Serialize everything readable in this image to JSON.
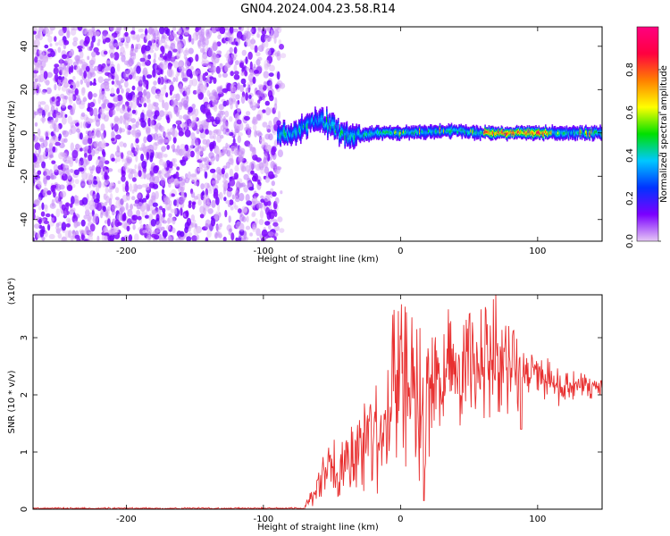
{
  "title": "GN04.2024.004.23.58.R14",
  "chart_data": [
    {
      "type": "heatmap",
      "xlabel": "Height of straight line (km)",
      "ylabel": "Frequency (Hz)",
      "xlim": [
        -268,
        147
      ],
      "ylim": [
        -50,
        49
      ],
      "xticks": [
        -200,
        -100,
        0,
        100
      ],
      "yticks": [
        -40,
        -20,
        0,
        20,
        40
      ],
      "colorbar": {
        "label": "Normalized spectral amplitude",
        "range": [
          0,
          1
        ],
        "ticks": [
          "0.0",
          "0.2",
          "0.4",
          "0.6",
          "0.8"
        ],
        "colormap": [
          "#e6c8f5",
          "#7b00ff",
          "#0033ff",
          "#00c8ff",
          "#00e000",
          "#ffff00",
          "#ff8000",
          "#ff0040",
          "#ff0080"
        ]
      },
      "features": {
        "noise_region_x": [
          -268,
          -90
        ],
        "noise_level": 0.15,
        "signal_band": [
          {
            "x": -90,
            "f": 0
          },
          {
            "x": -80,
            "f": -2
          },
          {
            "x": -70,
            "f": 4
          },
          {
            "x": -60,
            "f": 6
          },
          {
            "x": -50,
            "f": 3
          },
          {
            "x": -40,
            "f": -2
          },
          {
            "x": -30,
            "f": -1
          },
          {
            "x": -20,
            "f": 0
          },
          {
            "x": 0,
            "f": 0
          },
          {
            "x": 40,
            "f": 1
          },
          {
            "x": 60,
            "f": 0
          },
          {
            "x": 100,
            "f": 0
          },
          {
            "x": 147,
            "f": 0
          }
        ],
        "signal_peak": {
          "x_range": [
            60,
            110
          ],
          "amplitude": 0.95
        }
      }
    },
    {
      "type": "line",
      "xlabel": "Height of straight line (km)",
      "ylabel": "SNR (10 * v/v)",
      "ylabel_multiplier": "(x10⁴)",
      "xlim": [
        -268,
        147
      ],
      "ylim": [
        0,
        3.75
      ],
      "xticks": [
        -200,
        -100,
        0,
        100
      ],
      "yticks": [
        0,
        1,
        2,
        3
      ],
      "color": "#e83030",
      "envelope": [
        {
          "x": -268,
          "lo": 0.0,
          "hi": 0.03
        },
        {
          "x": -70,
          "lo": 0.0,
          "hi": 0.03
        },
        {
          "x": -63,
          "lo": 0.05,
          "hi": 0.6
        },
        {
          "x": -55,
          "lo": 0.1,
          "hi": 1.3
        },
        {
          "x": -40,
          "lo": 0.2,
          "hi": 1.3
        },
        {
          "x": -25,
          "lo": 0.2,
          "hi": 2.2
        },
        {
          "x": -10,
          "lo": 0.3,
          "hi": 2.4
        },
        {
          "x": -5,
          "lo": 0.5,
          "hi": 3.6
        },
        {
          "x": 5,
          "lo": 0.7,
          "hi": 3.6
        },
        {
          "x": 15,
          "lo": 0.4,
          "hi": 3.3
        },
        {
          "x": 25,
          "lo": 1.2,
          "hi": 3.4
        },
        {
          "x": 40,
          "lo": 1.3,
          "hi": 3.6
        },
        {
          "x": 55,
          "lo": 1.4,
          "hi": 3.4
        },
        {
          "x": 70,
          "lo": 1.6,
          "hi": 3.8
        },
        {
          "x": 85,
          "lo": 1.7,
          "hi": 3.0
        },
        {
          "x": 100,
          "lo": 1.9,
          "hi": 2.8
        },
        {
          "x": 115,
          "lo": 1.8,
          "hi": 2.5
        },
        {
          "x": 130,
          "lo": 1.9,
          "hi": 2.4
        },
        {
          "x": 147,
          "lo": 1.95,
          "hi": 2.25
        }
      ],
      "dips": [
        {
          "x": 17,
          "y": 0.15
        },
        {
          "x": 88,
          "y": 1.4
        }
      ]
    }
  ]
}
